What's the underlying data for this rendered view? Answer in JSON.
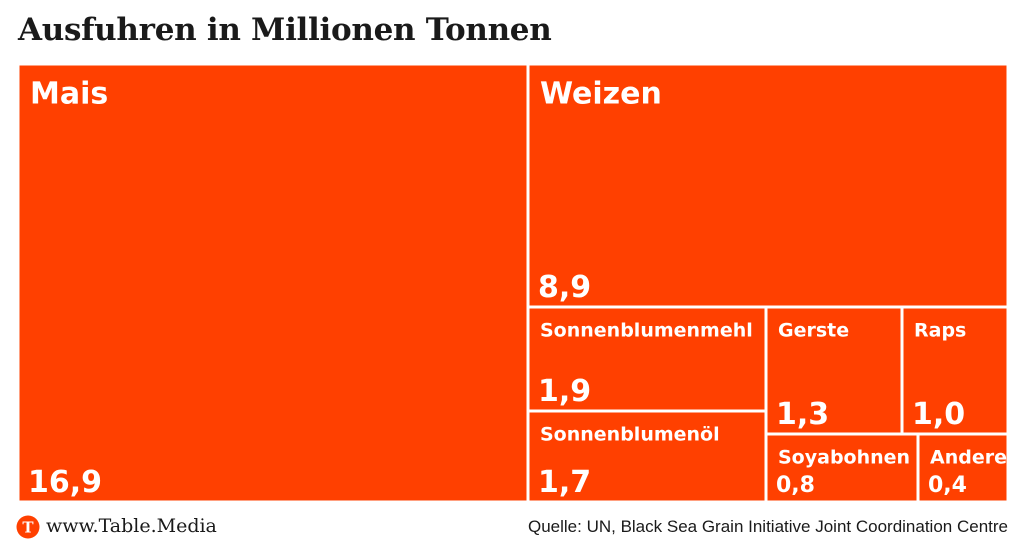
{
  "chart_data": {
    "type": "treemap",
    "title": "Ausfuhren in Millionen Tonnen",
    "color": "#ff4000",
    "items": [
      {
        "name": "Mais",
        "label": "Mais",
        "value": 16.9,
        "value_label": "16,9"
      },
      {
        "name": "Weizen",
        "label": "Weizen",
        "value": 8.9,
        "value_label": "8,9"
      },
      {
        "name": "Sonnenblumenmehl",
        "label": "Sonnenblumenmehl",
        "value": 1.9,
        "value_label": "1,9"
      },
      {
        "name": "Sonnenblumenöl",
        "label": "Sonnenblumenöl",
        "value": 1.7,
        "value_label": "1,7"
      },
      {
        "name": "Gerste",
        "label": "Gerste",
        "value": 1.3,
        "value_label": "1,3"
      },
      {
        "name": "Raps",
        "label": "Raps",
        "value": 1.0,
        "value_label": "1,0"
      },
      {
        "name": "Soyabohnen",
        "label": "Soyabohnen",
        "value": 0.8,
        "value_label": "0,8"
      },
      {
        "name": "Andere",
        "label": "Andere",
        "value": 0.4,
        "value_label": "0,4"
      }
    ]
  },
  "footer": {
    "logo_letter": "T",
    "url": "www.Table.Media",
    "source": "Quelle: UN, Black Sea Grain Initiative Joint Coordination Centre"
  }
}
